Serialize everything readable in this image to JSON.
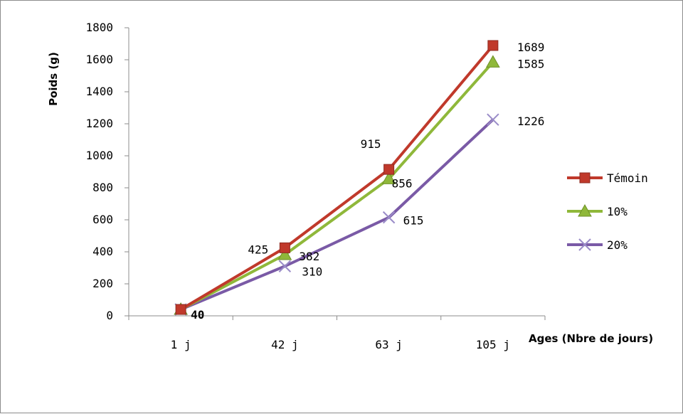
{
  "chart_data": {
    "type": "line",
    "xlabel": "Ages (Nbre de jours)",
    "ylabel": "Poids (g)",
    "ylim": [
      0,
      1800
    ],
    "yticks": [
      "0",
      "200",
      "400",
      "600",
      "800",
      "1000",
      "1200",
      "1400",
      "1600",
      "1800"
    ],
    "categories": [
      "1 j",
      "42 j",
      "63 j",
      "105 j"
    ],
    "grid": false,
    "legend_position": "right",
    "series": [
      {
        "name": "Témoin",
        "values": [
          40,
          425,
          915,
          1689
        ],
        "labels": [
          "",
          "425",
          "915",
          "1689"
        ],
        "color": "#c0392b",
        "marker": "square"
      },
      {
        "name": "10%",
        "values": [
          40,
          382,
          856,
          1585
        ],
        "labels": [
          "",
          "382",
          "856",
          "1585"
        ],
        "color": "#8fb83a",
        "marker": "triangle"
      },
      {
        "name": "20%",
        "values": [
          40,
          310,
          615,
          1226
        ],
        "labels": [
          "40",
          "310",
          "615",
          "1226"
        ],
        "color": "#7a5aa6",
        "marker": "x"
      }
    ]
  }
}
